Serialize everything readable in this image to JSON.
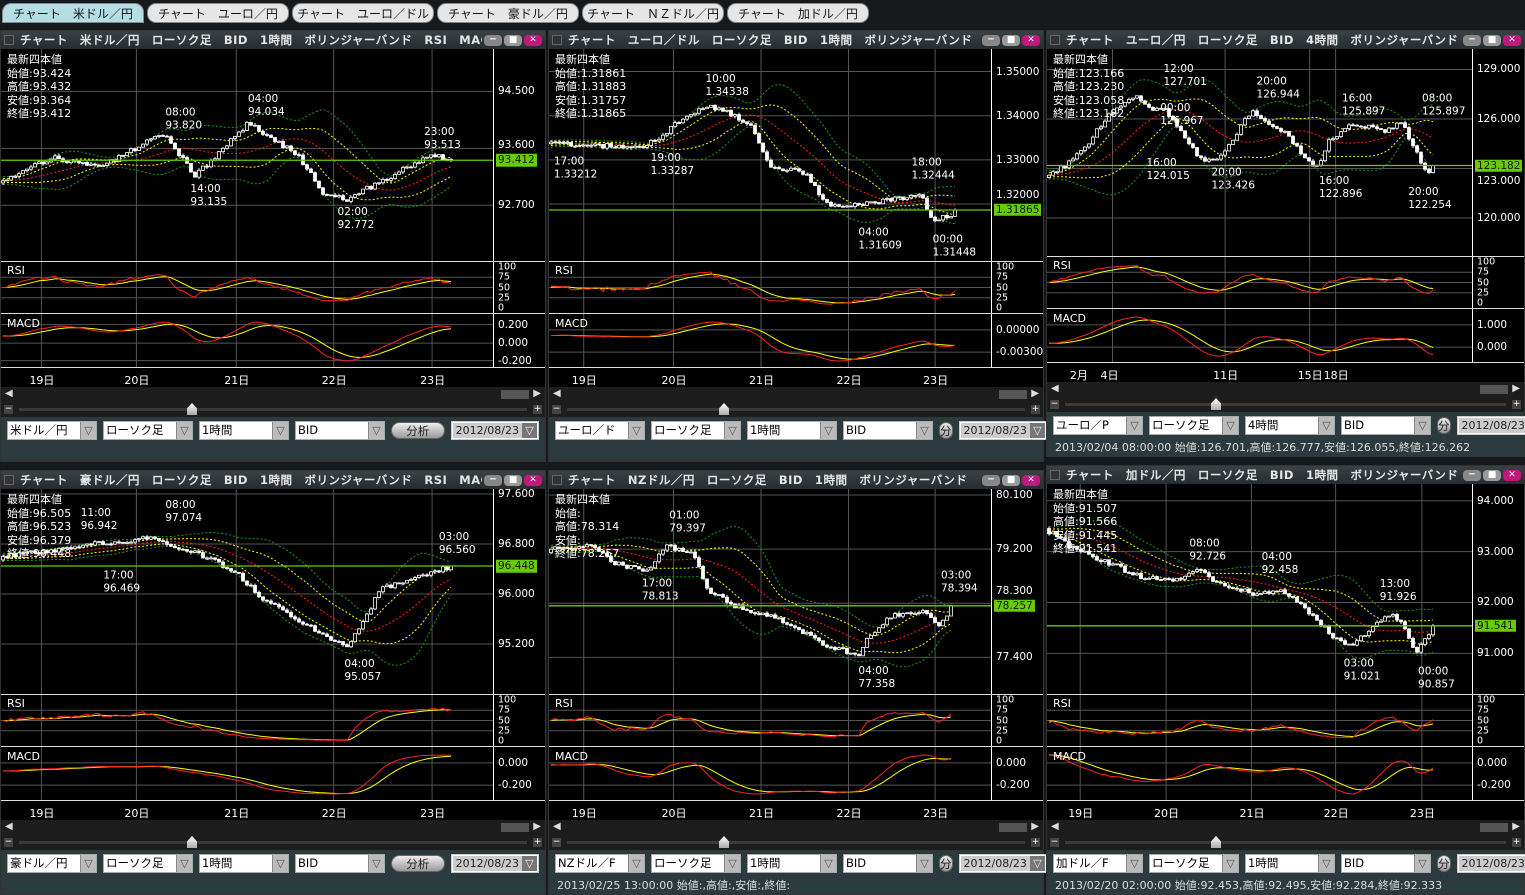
{
  "tabs": [
    {
      "label": "チャート　米ドル／円",
      "active": true
    },
    {
      "label": "チャート　ユーロ／円",
      "active": false
    },
    {
      "label": "チャート　ユーロ／ドル",
      "active": false
    },
    {
      "label": "チャート　豪ドル／円",
      "active": false
    },
    {
      "label": "チャート　ＮＺドル／円",
      "active": false
    },
    {
      "label": "チャート　加ドル／円",
      "active": false
    }
  ],
  "colors": {
    "candle": "#ffffff",
    "bb_mid": "#ff2020",
    "bb_1sigma": "#ffff00",
    "bb_2sigma": "#1a9a1a",
    "rsi": "#ff2020",
    "rsi_signal": "#ffff00",
    "macd": "#ff2020",
    "macd_signal": "#ffff00",
    "current_price": "#66cc00",
    "close_button": "#c2187e",
    "active_tab": "#b4dde6"
  },
  "panels": [
    {
      "title": "チャート　米ドル／円　ローソク足　BID　1時間　ボリンジャーバンド　RSI　MACD",
      "latest": {
        "heading": "最新四本値",
        "open": "始値:93.424",
        "high": "高値:93.432",
        "low": "安値:93.364",
        "close": "終値:93.412"
      },
      "ylim": [
        91.82,
        95.17
      ],
      "yticks": [
        "94.500",
        "93.600",
        "92.700"
      ],
      "current": "93.412",
      "annotations": [
        {
          "time": "08:00",
          "price": "93.820",
          "type": "high"
        },
        {
          "time": "04:00",
          "price": "94.034",
          "type": "high"
        },
        {
          "time": "14:00",
          "price": "93.135",
          "type": "low"
        },
        {
          "time": "02:00",
          "price": "92.772",
          "type": "low"
        },
        {
          "time": "23:00",
          "price": "93.513",
          "type": "high"
        }
      ],
      "rsi": {
        "label": "RSI",
        "ticks": [
          "100",
          "75",
          "50",
          "25",
          "0"
        ]
      },
      "macd": {
        "label": "MACD",
        "ticks": [
          "0.200",
          "0.000",
          "-0.200"
        ]
      },
      "dates": [
        "19日",
        "20日",
        "21日",
        "22日",
        "23日"
      ],
      "controls": {
        "pair": "米ドル／円",
        "chart_type": "ローソク足",
        "period": "1時間",
        "price_type": "BID",
        "analyze": "分析",
        "date": "2012/08/23"
      },
      "status": ""
    },
    {
      "title": "チャート　ユーロ／ドル　ローソク足　BID　1時間　ボリンジャーバンド　RSI　M···",
      "latest": {
        "heading": "最新四本値",
        "open": "始値:1.31861",
        "high": "高値:1.31883",
        "low": "安値:1.31757",
        "close": "終値:1.31865"
      },
      "ylim": [
        1.3071,
        1.3551
      ],
      "yticks": [
        "1.35000",
        "1.34000",
        "1.33000",
        "1.32000"
      ],
      "current": "1.31865",
      "annotations": [
        {
          "time": "10:00",
          "price": "1.34338",
          "type": "high"
        },
        {
          "time": "17:00",
          "price": "1.33212",
          "type": "low"
        },
        {
          "time": "19:00",
          "price": "1.33287",
          "type": "low"
        },
        {
          "time": "18:00",
          "price": "1.32444",
          "type": "high"
        },
        {
          "time": "04:00",
          "price": "1.31609",
          "type": "low"
        },
        {
          "time": "00:00",
          "price": "1.31448",
          "type": "low"
        }
      ],
      "rsi": {
        "label": "RSI",
        "ticks": [
          "100",
          "75",
          "50",
          "25",
          "0"
        ]
      },
      "macd": {
        "label": "MACD",
        "ticks": [
          "0.00000",
          "-0.00300"
        ]
      },
      "dates": [
        "19日",
        "20日",
        "21日",
        "22日",
        "23日"
      ],
      "controls": {
        "pair": "ユーロ／ド",
        "chart_type": "ローソク足",
        "period": "1時間",
        "price_type": "BID",
        "analyze": "分析",
        "date": "2012/08/23"
      },
      "status": ""
    },
    {
      "title": "チャート　ユーロ／円　ローソク足　BID　4時間　ボリンジャーバンド　RSI　···",
      "latest": {
        "heading": "最新四本値",
        "open": "始値:123.166",
        "high": "高値:123.230",
        "low": "安値:123.058",
        "close": "終値:123.182"
      },
      "ylim": [
        117.7,
        130.24
      ],
      "yticks": [
        "129.000",
        "126.000",
        "123.000",
        "120.000"
      ],
      "current": "123.182",
      "annotations": [
        {
          "time": "12:00",
          "price": "127.701",
          "type": "high"
        },
        {
          "time": "00:00",
          "price": "126.967",
          "type": "high"
        },
        {
          "time": "20:00",
          "price": "126.944",
          "type": "high"
        },
        {
          "time": "16:00",
          "price": "125.897",
          "type": "high"
        },
        {
          "time": "08:00",
          "price": "125.897",
          "type": "high"
        },
        {
          "time": "16:00",
          "price": "124.015",
          "type": "low"
        },
        {
          "time": "20:00",
          "price": "123.426",
          "type": "low"
        },
        {
          "time": "16:00",
          "price": "122.896",
          "type": "low"
        },
        {
          "time": "20:00",
          "price": "122.254",
          "type": "low"
        }
      ],
      "rsi": {
        "label": "RSI",
        "ticks": [
          "100",
          "75",
          "50",
          "25",
          "0"
        ]
      },
      "macd": {
        "label": "MACD",
        "ticks": [
          "1.000",
          "0.000"
        ]
      },
      "dates": [
        "2月",
        "4日",
        "11日",
        "15日",
        "18日"
      ],
      "controls": {
        "pair": "ユーロ／P",
        "chart_type": "ローソク足",
        "period": "4時間",
        "price_type": "BID",
        "analyze": "分析",
        "date": "2012/08/23"
      },
      "status": "2013/02/04 08:00:00 始値:126.701,高値:126.777,安値:126.055,終値:126.262"
    },
    {
      "title": "チャート　豪ドル／円　ローソク足　BID　1時間　ボリンジャーバンド　RSI　MACD",
      "latest": {
        "heading": "最新四本値",
        "open": "始値:96.505",
        "high": "高値:96.523",
        "low": "安値:96.379",
        "close": "終値:96.448"
      },
      "ylim": [
        94.4,
        97.68
      ],
      "yticks": [
        "97.600",
        "96.800",
        "96.000",
        "95.200"
      ],
      "current": "96.448",
      "annotations": [
        {
          "time": "11:00",
          "price": "96.942",
          "type": "high"
        },
        {
          "time": "08:00",
          "price": "97.074",
          "type": "high"
        },
        {
          "time": "17:00",
          "price": "96.469",
          "type": "low"
        },
        {
          "time": "04:00",
          "price": "95.057",
          "type": "low"
        },
        {
          "time": "03:00",
          "price": "96.560",
          "type": "high"
        }
      ],
      "rsi": {
        "label": "RSI",
        "ticks": [
          "100",
          "75",
          "50",
          "25",
          "0"
        ]
      },
      "macd": {
        "label": "MACD",
        "ticks": [
          "0.000",
          "-0.200"
        ]
      },
      "dates": [
        "19日",
        "20日",
        "21日",
        "22日",
        "23日"
      ],
      "controls": {
        "pair": "豪ドル／円",
        "chart_type": "ローソク足",
        "period": "1時間",
        "price_type": "BID",
        "analyze": "分析",
        "date": "2012/08/23"
      },
      "status": ""
    },
    {
      "title": "チャート　NZドル／円　ローソク足　BID　1時間　ボリンジャーバンド　RSI　M···",
      "latest": {
        "heading": "最新四本値",
        "open": "始値:",
        "high": "高値:78.314",
        "low": "安値:",
        "close": "終値:78.257"
      },
      "ylim": [
        76.79,
        80.2
      ],
      "yticks": [
        "80.100",
        "79.200",
        "78.300",
        "77.400"
      ],
      "current": "78.257",
      "annotations": [
        {
          "time": "01:00",
          "price": "79.397",
          "type": "high"
        },
        {
          "time": "17:00",
          "price": "78.813",
          "type": "low"
        },
        {
          "time": "04:00",
          "price": "77.358",
          "type": "low"
        },
        {
          "time": "03:00",
          "price": "78.394",
          "type": "high"
        }
      ],
      "rsi": {
        "label": "RSI",
        "ticks": [
          "100",
          "75",
          "50",
          "25",
          "0"
        ]
      },
      "macd": {
        "label": "MACD",
        "ticks": [
          "0.000",
          "-0.200"
        ]
      },
      "dates": [
        "19日",
        "20日",
        "21日",
        "22日",
        "23日"
      ],
      "controls": {
        "pair": "NZドル／F",
        "chart_type": "ローソク足",
        "period": "1時間",
        "price_type": "BID",
        "analyze": "分析",
        "date": "2012/08/23"
      },
      "status": "2013/02/25 13:00:00 始値:,高値:,安値:,終値:"
    },
    {
      "title": "チャート　加ドル／円　ローソク足　BID　1時間　ボリンジャーバンド　RSI　···",
      "latest": {
        "heading": "最新四本値",
        "open": "始値:91.507",
        "high": "高値:91.566",
        "low": "安値:91.445",
        "close": "終値:91.541"
      },
      "ylim": [
        90.2,
        94.33
      ],
      "yticks": [
        "94.000",
        "93.000",
        "92.000",
        "91.000"
      ],
      "current": "91.541",
      "annotations": [
        {
          "time": "08:00",
          "price": "92.726",
          "type": "high"
        },
        {
          "time": "04:00",
          "price": "92.458",
          "type": "high"
        },
        {
          "time": "13:00",
          "price": "91.926",
          "type": "high"
        },
        {
          "time": "03:00",
          "price": "91.021",
          "type": "low"
        },
        {
          "time": "00:00",
          "price": "90.857",
          "type": "low"
        }
      ],
      "rsi": {
        "label": "RSI",
        "ticks": [
          "100",
          "75",
          "50",
          "25",
          "0"
        ]
      },
      "macd": {
        "label": "MACD",
        "ticks": [
          "0.000",
          "-0.200"
        ]
      },
      "dates": [
        "19日",
        "20日",
        "21日",
        "22日",
        "23日"
      ],
      "controls": {
        "pair": "加ドル／F",
        "chart_type": "ローソク足",
        "period": "1時間",
        "price_type": "BID",
        "analyze": "分析",
        "date": "2012/08/23"
      },
      "status": "2013/02/20 02:00:00 始値:92.453,高値:92.495,安値:92.284,終値:92.333"
    }
  ]
}
